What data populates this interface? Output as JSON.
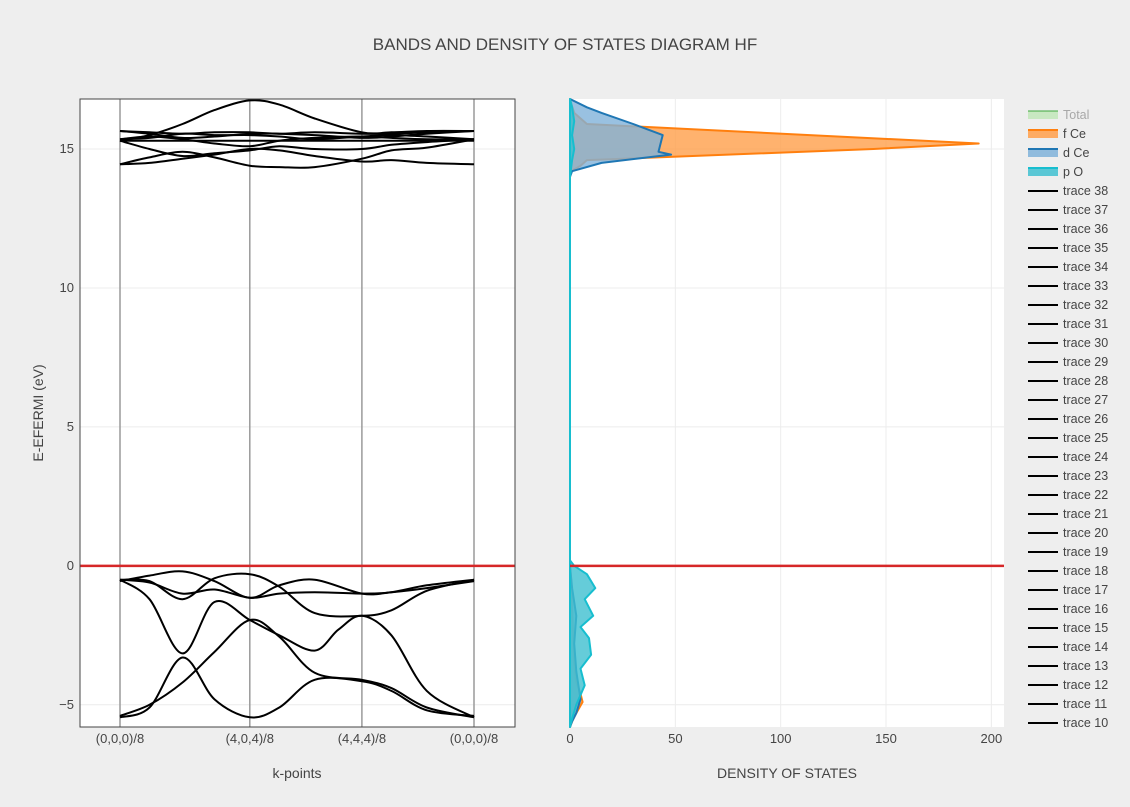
{
  "chart_data": [
    {
      "type": "line",
      "panel": "bands",
      "title": "BANDS AND DENSITY OF STATES DIAGRAM HF",
      "xlabel": "k-points",
      "ylabel": "E-EFERMI (eV)",
      "ylim": [
        -5.8,
        16.8
      ],
      "yticks": [
        -5,
        0,
        5,
        10,
        15
      ],
      "x_tick_labels": [
        "(0,0,0)/8",
        "(4,0,4)/8",
        "(4,4,4)/8",
        "(0,0,0)/8"
      ],
      "x_tick_positions": [
        0,
        1.1,
        2.05,
        3.0
      ],
      "fermi_level": 0,
      "fermi_color": "#d62728",
      "band_color": "#000000",
      "series": [
        {
          "name": "trace 10",
          "x": [
            0,
            0.25,
            0.53,
            0.8,
            1.1,
            1.35,
            1.65,
            2.05,
            2.3,
            2.6,
            3.0
          ],
          "y": [
            -5.45,
            -5.1,
            -3.3,
            -4.8,
            -5.45,
            -5.1,
            -4.1,
            -4.15,
            -4.5,
            -5.2,
            -5.4
          ]
        },
        {
          "name": "trace 11",
          "x": [
            0,
            0.25,
            0.53,
            0.8,
            1.1,
            1.35,
            1.65,
            2.05,
            2.3,
            2.6,
            3.0
          ],
          "y": [
            -5.4,
            -5.0,
            -4.2,
            -3.1,
            -1.95,
            -2.55,
            -3.85,
            -4.1,
            -4.4,
            -5.1,
            -5.45
          ]
        },
        {
          "name": "trace 12",
          "x": [
            0,
            0.25,
            0.53,
            0.8,
            1.1,
            1.35,
            1.65,
            1.85,
            2.05,
            2.3,
            2.6,
            3.0
          ],
          "y": [
            -0.5,
            -1.2,
            -3.15,
            -1.3,
            -1.95,
            -2.5,
            -3.05,
            -2.3,
            -1.8,
            -2.5,
            -4.5,
            -5.45
          ]
        },
        {
          "name": "trace 13",
          "x": [
            0,
            0.25,
            0.53,
            0.8,
            1.1,
            1.35,
            1.65,
            2.05,
            2.3,
            2.6,
            3.0
          ],
          "y": [
            -0.5,
            -0.55,
            -1.2,
            -0.45,
            -0.3,
            -0.75,
            -1.7,
            -1.8,
            -1.6,
            -0.9,
            -0.5
          ]
        },
        {
          "name": "trace 14",
          "x": [
            0,
            0.25,
            0.53,
            0.8,
            1.1,
            1.35,
            1.65,
            2.05,
            2.3,
            2.6,
            3.0
          ],
          "y": [
            -0.55,
            -0.35,
            -0.2,
            -0.55,
            -1.15,
            -0.7,
            -0.5,
            -1.0,
            -0.95,
            -0.8,
            -0.55
          ]
        },
        {
          "name": "trace 15",
          "x": [
            0,
            0.25,
            0.53,
            0.8,
            1.1,
            1.35,
            1.65,
            2.05,
            2.3,
            2.6,
            3.0
          ],
          "y": [
            -0.5,
            -0.6,
            -1.0,
            -0.85,
            -1.15,
            -1.0,
            -0.95,
            -1.0,
            -0.95,
            -0.7,
            -0.5
          ]
        },
        {
          "name": "trace 16",
          "x": [
            0,
            0.25,
            0.53,
            0.8,
            1.1,
            1.35,
            1.65,
            2.05,
            2.3,
            2.6,
            3.0
          ],
          "y": [
            14.45,
            14.5,
            14.65,
            14.8,
            15.0,
            14.95,
            14.75,
            14.55,
            14.6,
            14.5,
            14.45
          ]
        },
        {
          "name": "trace 17",
          "x": [
            0,
            0.25,
            0.53,
            0.8,
            1.1,
            1.35,
            1.65,
            2.05,
            2.3,
            2.6,
            3.0
          ],
          "y": [
            14.45,
            14.7,
            14.9,
            14.7,
            14.4,
            14.35,
            14.35,
            14.65,
            14.95,
            15.05,
            15.35
          ]
        },
        {
          "name": "trace 18",
          "x": [
            0,
            0.25,
            0.53,
            0.8,
            1.1,
            1.35,
            1.65,
            2.05,
            2.3,
            2.6,
            3.0
          ],
          "y": [
            15.3,
            15.0,
            14.75,
            14.85,
            14.95,
            15.1,
            15.0,
            15.0,
            15.15,
            15.25,
            15.35
          ]
        },
        {
          "name": "trace 19",
          "x": [
            0,
            0.25,
            0.53,
            0.8,
            1.1,
            1.35,
            1.65,
            2.05,
            2.3,
            2.6,
            3.0
          ],
          "y": [
            15.3,
            15.3,
            15.3,
            15.3,
            15.3,
            15.3,
            15.3,
            15.3,
            15.3,
            15.3,
            15.3
          ]
        },
        {
          "name": "trace 20",
          "x": [
            0,
            0.25,
            0.53,
            0.8,
            1.1,
            1.35,
            1.65,
            2.05,
            2.3,
            2.6,
            3.0
          ],
          "y": [
            15.35,
            15.45,
            15.35,
            15.2,
            15.1,
            15.3,
            15.4,
            15.45,
            15.4,
            15.35,
            15.35
          ]
        },
        {
          "name": "trace 21",
          "x": [
            0,
            0.25,
            0.53,
            0.8,
            1.1,
            1.35,
            1.65,
            2.05,
            2.3,
            2.6,
            3.0
          ],
          "y": [
            15.35,
            15.4,
            15.55,
            15.5,
            15.5,
            15.45,
            15.35,
            15.45,
            15.5,
            15.45,
            15.35
          ]
        },
        {
          "name": "trace 22",
          "x": [
            0,
            0.25,
            0.53,
            0.8,
            1.1,
            1.35,
            1.65,
            2.05,
            2.3,
            2.6,
            3.0
          ],
          "y": [
            15.65,
            15.55,
            15.4,
            15.45,
            15.55,
            15.55,
            15.5,
            15.4,
            15.45,
            15.55,
            15.65
          ]
        },
        {
          "name": "trace 23",
          "x": [
            0,
            0.25,
            0.53,
            0.8,
            1.1,
            1.35,
            1.65,
            2.05,
            2.3,
            2.6,
            3.0
          ],
          "y": [
            15.65,
            15.6,
            15.55,
            15.6,
            15.6,
            15.55,
            15.6,
            15.55,
            15.55,
            15.6,
            15.65
          ]
        },
        {
          "name": "trace 24",
          "x": [
            0,
            0.25,
            0.53,
            0.8,
            1.1,
            1.35,
            1.65,
            2.05,
            2.3,
            2.6,
            3.0
          ],
          "y": [
            15.3,
            15.5,
            15.9,
            16.4,
            16.75,
            16.6,
            16.1,
            15.6,
            15.6,
            15.65,
            15.65
          ]
        }
      ]
    },
    {
      "type": "area",
      "panel": "dos",
      "xlabel": "DENSITY OF STATES",
      "xlim": [
        0,
        206
      ],
      "xticks": [
        0,
        50,
        100,
        150,
        200
      ],
      "ylim": [
        -5.8,
        16.8
      ],
      "fermi_level": 0,
      "series": [
        {
          "name": "Total",
          "visible": false,
          "fill": "#98df8a",
          "line": "#2ca02c",
          "x": [],
          "y": []
        },
        {
          "name": "f Ce",
          "visible": true,
          "fill": "#ff9f4a",
          "line": "#ff7f0e",
          "x": [
            0,
            0.5,
            5,
            8,
            144,
            194,
            8,
            2,
            0.5,
            0,
            0,
            0.5,
            1,
            1.5,
            2,
            3,
            5,
            6,
            3,
            1,
            0
          ],
          "y": [
            14.0,
            14.2,
            14.4,
            14.6,
            15.0,
            15.2,
            15.9,
            16.3,
            16.65,
            16.8,
            0.0,
            -0.5,
            -1.5,
            -2.5,
            -3.5,
            -4.2,
            -4.6,
            -4.9,
            -5.3,
            -5.6,
            -5.8
          ]
        },
        {
          "name": "d Ce",
          "visible": true,
          "fill": "#7fb2d9",
          "line": "#1f77b4",
          "x": [
            0,
            1,
            15,
            48,
            42,
            44,
            30,
            15,
            8,
            0,
            0,
            1,
            3,
            2,
            3,
            5,
            3,
            1,
            0
          ],
          "y": [
            14.0,
            14.2,
            14.5,
            14.8,
            14.9,
            15.5,
            15.9,
            16.3,
            16.5,
            16.8,
            0.0,
            -0.8,
            -1.8,
            -2.8,
            -3.8,
            -4.8,
            -5.3,
            -5.6,
            -5.8
          ]
        },
        {
          "name": "p O",
          "visible": true,
          "fill": "#3fbfd0",
          "line": "#17becf",
          "x": [
            0,
            1,
            2,
            1,
            2,
            1,
            0,
            0,
            2,
            8,
            12,
            7,
            11,
            5,
            9,
            10,
            5,
            7,
            3,
            1,
            0
          ],
          "y": [
            14.0,
            14.6,
            15.0,
            15.5,
            16.0,
            16.5,
            16.8,
            0.2,
            0.0,
            -0.3,
            -0.8,
            -1.2,
            -1.8,
            -2.2,
            -2.6,
            -3.2,
            -3.7,
            -4.3,
            -5.0,
            -5.5,
            -5.8
          ]
        }
      ]
    }
  ],
  "legend": {
    "placement": "right",
    "items": [
      {
        "label": "Total",
        "kind": "area",
        "fill": "#98df8a",
        "line": "#2ca02c",
        "visible": false
      },
      {
        "label": "f Ce",
        "kind": "area",
        "fill": "#ff9f4a",
        "line": "#ff7f0e",
        "visible": true
      },
      {
        "label": "d Ce",
        "kind": "area",
        "fill": "#7fb2d9",
        "line": "#1f77b4",
        "visible": true
      },
      {
        "label": "p O",
        "kind": "area",
        "fill": "#3fbfd0",
        "line": "#17becf",
        "visible": true
      },
      {
        "label": "trace 38",
        "kind": "line",
        "line": "#000000",
        "visible": true
      },
      {
        "label": "trace 37",
        "kind": "line",
        "line": "#000000",
        "visible": true
      },
      {
        "label": "trace 36",
        "kind": "line",
        "line": "#000000",
        "visible": true
      },
      {
        "label": "trace 35",
        "kind": "line",
        "line": "#000000",
        "visible": true
      },
      {
        "label": "trace 34",
        "kind": "line",
        "line": "#000000",
        "visible": true
      },
      {
        "label": "trace 33",
        "kind": "line",
        "line": "#000000",
        "visible": true
      },
      {
        "label": "trace 32",
        "kind": "line",
        "line": "#000000",
        "visible": true
      },
      {
        "label": "trace 31",
        "kind": "line",
        "line": "#000000",
        "visible": true
      },
      {
        "label": "trace 30",
        "kind": "line",
        "line": "#000000",
        "visible": true
      },
      {
        "label": "trace 29",
        "kind": "line",
        "line": "#000000",
        "visible": true
      },
      {
        "label": "trace 28",
        "kind": "line",
        "line": "#000000",
        "visible": true
      },
      {
        "label": "trace 27",
        "kind": "line",
        "line": "#000000",
        "visible": true
      },
      {
        "label": "trace 26",
        "kind": "line",
        "line": "#000000",
        "visible": true
      },
      {
        "label": "trace 25",
        "kind": "line",
        "line": "#000000",
        "visible": true
      },
      {
        "label": "trace 24",
        "kind": "line",
        "line": "#000000",
        "visible": true
      },
      {
        "label": "trace 23",
        "kind": "line",
        "line": "#000000",
        "visible": true
      },
      {
        "label": "trace 22",
        "kind": "line",
        "line": "#000000",
        "visible": true
      },
      {
        "label": "trace 21",
        "kind": "line",
        "line": "#000000",
        "visible": true
      },
      {
        "label": "trace 20",
        "kind": "line",
        "line": "#000000",
        "visible": true
      },
      {
        "label": "trace 19",
        "kind": "line",
        "line": "#000000",
        "visible": true
      },
      {
        "label": "trace 18",
        "kind": "line",
        "line": "#000000",
        "visible": true
      },
      {
        "label": "trace 17",
        "kind": "line",
        "line": "#000000",
        "visible": true
      },
      {
        "label": "trace 16",
        "kind": "line",
        "line": "#000000",
        "visible": true
      },
      {
        "label": "trace 15",
        "kind": "line",
        "line": "#000000",
        "visible": true
      },
      {
        "label": "trace 14",
        "kind": "line",
        "line": "#000000",
        "visible": true
      },
      {
        "label": "trace 13",
        "kind": "line",
        "line": "#000000",
        "visible": true
      },
      {
        "label": "trace 12",
        "kind": "line",
        "line": "#000000",
        "visible": true
      },
      {
        "label": "trace 11",
        "kind": "line",
        "line": "#000000",
        "visible": true
      },
      {
        "label": "trace 10",
        "kind": "line",
        "line": "#000000",
        "visible": true
      }
    ]
  }
}
